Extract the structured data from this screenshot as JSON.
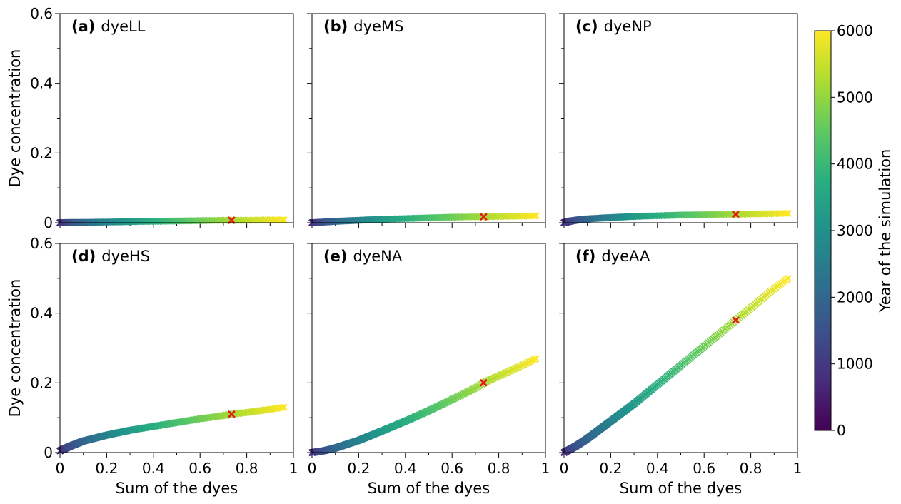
{
  "chart_data": {
    "type": "scatter",
    "shared_axes": {
      "xlabel": "Sum of the dyes",
      "ylabel": "Dye concentration",
      "xlim": [
        0,
        1
      ],
      "ylim": [
        0,
        0.6
      ],
      "xticks": [
        0,
        0.2,
        0.4,
        0.6,
        0.8,
        1
      ],
      "xtick_labels": [
        "0",
        "0.2",
        "0.4",
        "0.6",
        "0.8",
        "1"
      ],
      "yticks": [
        0,
        0.2,
        0.4,
        0.6
      ],
      "ytick_labels": [
        "0",
        "0.2",
        "0.4",
        "0.6"
      ],
      "grid": false
    },
    "colorbar": {
      "label": "Year of the simulation",
      "colormap": "viridis",
      "range": [
        0,
        6000
      ],
      "ticks": [
        0,
        1000,
        2000,
        3000,
        4000,
        5000,
        6000
      ],
      "tick_labels": [
        "0",
        "1000",
        "2000",
        "3000",
        "4000",
        "5000",
        "6000"
      ]
    },
    "marker": "x",
    "highlight": {
      "color": "#e41a1c",
      "x": 0.735
    },
    "panels": [
      {
        "letter": "(a)",
        "name": "dyeLL",
        "points": [
          [
            0,
            0
          ],
          [
            0.05,
            0.001
          ],
          [
            0.1,
            0.001
          ],
          [
            0.2,
            0.002
          ],
          [
            0.3,
            0.003
          ],
          [
            0.4,
            0.004
          ],
          [
            0.5,
            0.005
          ],
          [
            0.6,
            0.006
          ],
          [
            0.7,
            0.007
          ],
          [
            0.735,
            0.007
          ],
          [
            0.8,
            0.007
          ],
          [
            0.9,
            0.008
          ],
          [
            0.96,
            0.008
          ]
        ]
      },
      {
        "letter": "(b)",
        "name": "dyeMS",
        "points": [
          [
            0,
            0
          ],
          [
            0.05,
            0.002
          ],
          [
            0.1,
            0.004
          ],
          [
            0.2,
            0.007
          ],
          [
            0.3,
            0.01
          ],
          [
            0.4,
            0.012
          ],
          [
            0.5,
            0.014
          ],
          [
            0.6,
            0.016
          ],
          [
            0.7,
            0.017
          ],
          [
            0.735,
            0.017
          ],
          [
            0.8,
            0.018
          ],
          [
            0.9,
            0.019
          ],
          [
            0.96,
            0.02
          ]
        ]
      },
      {
        "letter": "(c)",
        "name": "dyeNP",
        "points": [
          [
            0,
            0
          ],
          [
            0.03,
            0.005
          ],
          [
            0.07,
            0.009
          ],
          [
            0.1,
            0.011
          ],
          [
            0.2,
            0.015
          ],
          [
            0.3,
            0.018
          ],
          [
            0.4,
            0.02
          ],
          [
            0.5,
            0.022
          ],
          [
            0.6,
            0.023
          ],
          [
            0.7,
            0.024
          ],
          [
            0.735,
            0.024
          ],
          [
            0.8,
            0.025
          ],
          [
            0.9,
            0.026
          ],
          [
            0.96,
            0.027
          ]
        ]
      },
      {
        "letter": "(d)",
        "name": "dyeHS",
        "points": [
          [
            0,
            0.005
          ],
          [
            0.05,
            0.02
          ],
          [
            0.1,
            0.033
          ],
          [
            0.2,
            0.05
          ],
          [
            0.3,
            0.064
          ],
          [
            0.4,
            0.075
          ],
          [
            0.5,
            0.086
          ],
          [
            0.6,
            0.097
          ],
          [
            0.7,
            0.106
          ],
          [
            0.735,
            0.11
          ],
          [
            0.8,
            0.115
          ],
          [
            0.9,
            0.124
          ],
          [
            0.96,
            0.13
          ]
        ]
      },
      {
        "letter": "(e)",
        "name": "dyeNA",
        "points": [
          [
            0,
            0
          ],
          [
            0.05,
            0.005
          ],
          [
            0.1,
            0.013
          ],
          [
            0.2,
            0.035
          ],
          [
            0.3,
            0.062
          ],
          [
            0.4,
            0.09
          ],
          [
            0.5,
            0.12
          ],
          [
            0.6,
            0.152
          ],
          [
            0.7,
            0.185
          ],
          [
            0.735,
            0.2
          ],
          [
            0.8,
            0.22
          ],
          [
            0.9,
            0.25
          ],
          [
            0.96,
            0.27
          ]
        ]
      },
      {
        "letter": "(f)",
        "name": "dyeAA",
        "points": [
          [
            0,
            0
          ],
          [
            0.05,
            0.018
          ],
          [
            0.1,
            0.04
          ],
          [
            0.2,
            0.09
          ],
          [
            0.3,
            0.14
          ],
          [
            0.4,
            0.195
          ],
          [
            0.5,
            0.25
          ],
          [
            0.6,
            0.305
          ],
          [
            0.7,
            0.36
          ],
          [
            0.735,
            0.38
          ],
          [
            0.8,
            0.415
          ],
          [
            0.9,
            0.47
          ],
          [
            0.96,
            0.5
          ]
        ]
      }
    ]
  }
}
